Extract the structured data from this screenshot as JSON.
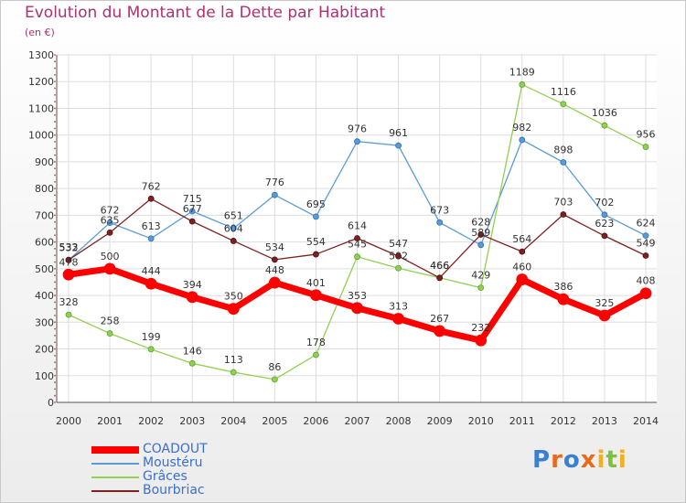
{
  "chart_data": {
    "type": "line",
    "title": "Evolution du Montant de la Dette par Habitant",
    "subtitle": "(en €)",
    "x": [
      "2000",
      "2001",
      "2002",
      "2003",
      "2004",
      "2005",
      "2006",
      "2007",
      "2008",
      "2009",
      "2010",
      "2011",
      "2012",
      "2013",
      "2014"
    ],
    "ylim": [
      0,
      1300
    ],
    "yticks": [
      0,
      100,
      200,
      300,
      400,
      500,
      600,
      700,
      800,
      900,
      1000,
      1100,
      1200,
      1300
    ],
    "grid": true,
    "legend_position": "bottom-left",
    "series": [
      {
        "name": "COADOUT",
        "color": "#ff0000",
        "values": [
          478,
          500,
          444,
          394,
          350,
          448,
          401,
          353,
          313,
          267,
          232,
          460,
          386,
          325,
          408
        ]
      },
      {
        "name": "Moustéru",
        "color": "#5b9bd5",
        "values": [
          532,
          672,
          613,
          715,
          651,
          776,
          695,
          976,
          961,
          673,
          589,
          982,
          898,
          702,
          624
        ]
      },
      {
        "name": "Grâces",
        "color": "#92d050",
        "values": [
          328,
          258,
          199,
          146,
          113,
          86,
          178,
          545,
          502,
          466,
          429,
          1189,
          1116,
          1036,
          956
        ]
      },
      {
        "name": "Bourbriac",
        "color": "#7f2020",
        "values": [
          533,
          635,
          762,
          677,
          604,
          534,
          554,
          614,
          547,
          466,
          628,
          564,
          703,
          623,
          549
        ]
      }
    ]
  },
  "logo": {
    "letters": [
      {
        "ch": "P",
        "color": "#3a7fd0"
      },
      {
        "ch": "r",
        "color": "#e86a1e"
      },
      {
        "ch": "o",
        "color": "#3a7fd0"
      },
      {
        "ch": "x",
        "color": "#e86a1e"
      },
      {
        "ch": "i",
        "color": "#f2b01e"
      },
      {
        "ch": "t",
        "color": "#7fbf3f"
      },
      {
        "ch": "i",
        "color": "#f2b01e"
      }
    ]
  }
}
